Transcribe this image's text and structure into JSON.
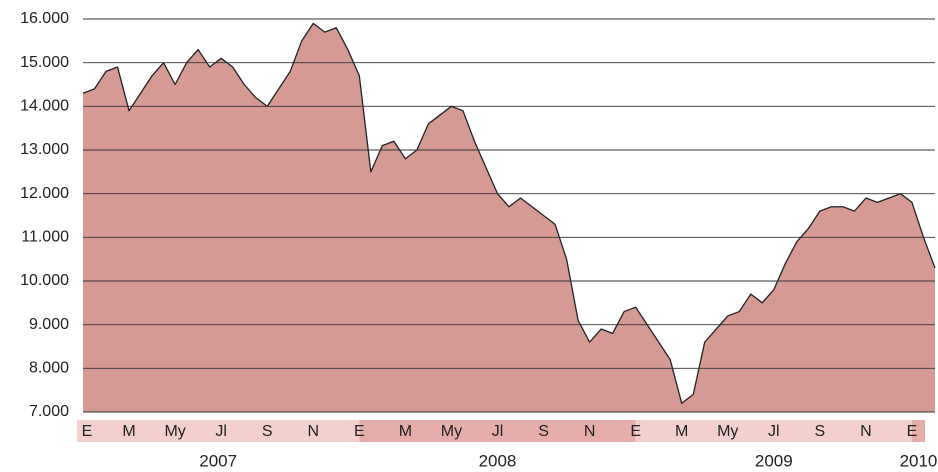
{
  "chart_data": {
    "type": "area",
    "color": "#d69a94",
    "line_color": "#222222",
    "categories": [
      "E",
      null,
      null,
      null,
      "M",
      null,
      null,
      null,
      "My",
      null,
      null,
      null,
      "Jl",
      null,
      null,
      null,
      "S",
      null,
      null,
      null,
      "N",
      null,
      null,
      null,
      "E",
      null,
      null,
      null,
      "M",
      null,
      null,
      null,
      "My",
      null,
      null,
      null,
      "Jl",
      null,
      null,
      null,
      "S",
      null,
      null,
      null,
      "N",
      null,
      null,
      null,
      "E",
      null,
      null,
      null,
      "M",
      null,
      null,
      null,
      "My",
      null,
      null,
      null,
      "Jl",
      null,
      null,
      null,
      "S",
      null,
      null,
      null,
      "N",
      null,
      null,
      null,
      "E",
      null,
      null
    ],
    "values": [
      14300,
      14400,
      14800,
      14900,
      13900,
      14300,
      14700,
      15000,
      14500,
      15000,
      15300,
      14900,
      15100,
      14900,
      14500,
      14200,
      14000,
      14400,
      14800,
      15500,
      15900,
      15700,
      15800,
      15300,
      14700,
      12500,
      13100,
      13200,
      12800,
      13000,
      13600,
      13800,
      14000,
      13900,
      13200,
      12600,
      12000,
      11700,
      11900,
      11700,
      11500,
      11300,
      10500,
      9100,
      8600,
      8900,
      8800,
      9300,
      9400,
      9000,
      8600,
      8200,
      7200,
      7400,
      8600,
      8900,
      9200,
      9300,
      9700,
      9500,
      9800,
      10400,
      10900,
      11200,
      11600,
      11700,
      11700,
      11600,
      11900,
      11800,
      11900,
      12000,
      11800,
      11000,
      10300
    ],
    "years": [
      "2007",
      "2008",
      "2009",
      "2010"
    ],
    "ylim": [
      7000,
      16000
    ],
    "yticks": [
      {
        "value": 7000,
        "label": "7.000"
      },
      {
        "value": 8000,
        "label": "8.000"
      },
      {
        "value": 9000,
        "label": "9.000"
      },
      {
        "value": 10000,
        "label": "10.000"
      },
      {
        "value": 11000,
        "label": "11.000"
      },
      {
        "value": 12000,
        "label": "12.000"
      },
      {
        "value": 13000,
        "label": "13.000"
      },
      {
        "value": 14000,
        "label": "14.000"
      },
      {
        "value": 15000,
        "label": "15.000"
      },
      {
        "value": 16000,
        "label": "16.000"
      }
    ],
    "grid": true
  }
}
